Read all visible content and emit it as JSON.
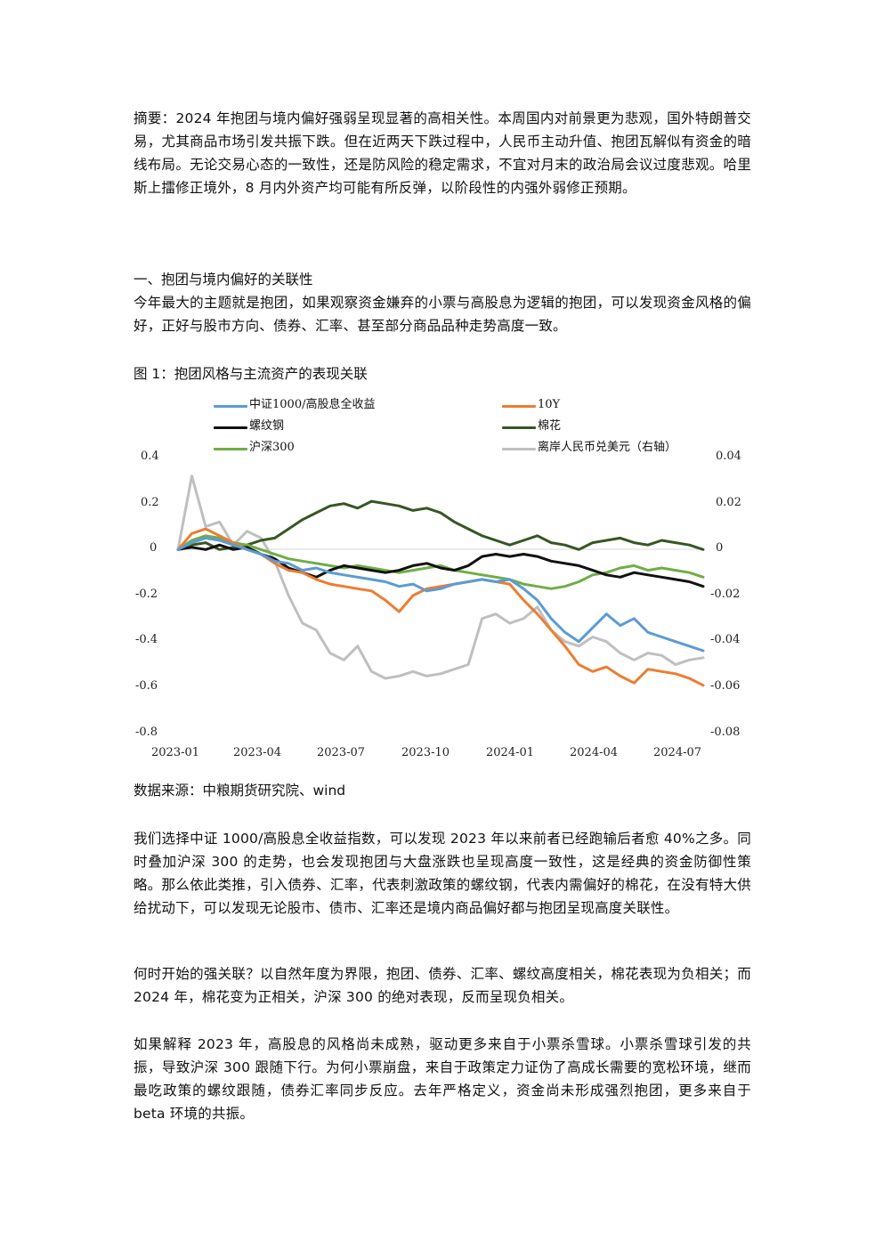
{
  "summary": "摘要：2024 年抱团与境内偏好强弱呈现显著的高相关性。本周国内对前景更为悲观，国外特朗普交易，尤其商品市场引发共振下跌。但在近两天下跌过程中，人民币主动升值、抱团瓦解似有资金的暗线布局。无论交易心态的一致性，还是防风险的稳定需求，不宜对月末的政治局会议过度悲观。哈里斯上擂修正境外，8 月内外资产均可能有所反弹，以阶段性的内强外弱修正预期。",
  "section1": {
    "heading": "一、抱团与境内偏好的关联性",
    "intro": "今年最大的主题就是抱团，如果观察资金嫌弃的小票与高股息为逻辑的抱团，可以发现资金风格的偏好，正好与股市方向、债券、汇率、甚至部分商品品种走势高度一致。"
  },
  "figure": {
    "caption": "图 1：抱团风格与主流资产的表现关联",
    "source": "数据来源：中粮期货研究院、wind"
  },
  "paragraphs": [
    "我们选择中证 1000/高股息全收益指数，可以发现 2023 年以来前者已经跑输后者愈 40%之多。同时叠加沪深 300 的走势，也会发现抱团与大盘涨跌也呈现高度一致性，这是经典的资金防御性策略。那么依此类推，引入债券、汇率，代表刺激政策的螺纹钢，代表内需偏好的棉花，在没有特大供给扰动下，可以发现无论股市、债市、汇率还是境内商品偏好都与抱团呈现高度关联性。",
    "何时开始的强关联？以自然年度为界限，抱团、债券、汇率、螺纹高度相关，棉花表现为负相关；而 2024 年，棉花变为正相关，沪深 300 的绝对表现，反而呈现负相关。",
    "如果解释 2023 年，高股息的风格尚未成熟，驱动更多来自于小票杀雪球。小票杀雪球引发的共振，导致沪深 300 跟随下行。为何小票崩盘，来自于政策定力证伪了高成长需要的宽松环境，继而最吃政策的螺纹跟随，债券汇率同步反应。去年严格定义，资金尚未形成强烈抱团，更多来自于 beta 环境的共振。"
  ],
  "chart_data": {
    "type": "line",
    "title": "",
    "xlabel": "",
    "ylabel": "",
    "x_ticks": [
      "2023-01",
      "2023-04",
      "2023-07",
      "2023-10",
      "2024-01",
      "2024-04",
      "2024-07"
    ],
    "y_left_ticks": [
      "0.4",
      "0.2",
      "0",
      "-0.2",
      "-0.4",
      "-0.6",
      "-0.8"
    ],
    "y_right_ticks": [
      "0.04",
      "0.02",
      "0",
      "-0.02",
      "-0.04",
      "-0.06",
      "-0.08"
    ],
    "ylim_left": [
      -0.8,
      0.4
    ],
    "ylim_right": [
      -0.08,
      0.04
    ],
    "grid": false,
    "legend_position": "top",
    "x_months": [
      0,
      0.5,
      1,
      1.5,
      2,
      2.5,
      3,
      3.5,
      4,
      4.5,
      5,
      5.5,
      6,
      6.5,
      7,
      7.5,
      8,
      8.5,
      9,
      9.5,
      10,
      10.5,
      11,
      11.5,
      12,
      12.5,
      13,
      13.5,
      14,
      14.5,
      15,
      15.5,
      16,
      16.5,
      17,
      17.5,
      18,
      18.5,
      19
    ],
    "series": [
      {
        "name": "中证1000/高股息全收益",
        "color": "#5b9bd5",
        "axis": "left",
        "values": [
          0,
          0.03,
          0.05,
          0.04,
          0.02,
          0.0,
          -0.02,
          -0.05,
          -0.06,
          -0.09,
          -0.08,
          -0.1,
          -0.11,
          -0.12,
          -0.13,
          -0.14,
          -0.16,
          -0.15,
          -0.18,
          -0.17,
          -0.15,
          -0.14,
          -0.13,
          -0.14,
          -0.13,
          -0.17,
          -0.22,
          -0.3,
          -0.36,
          -0.4,
          -0.34,
          -0.28,
          -0.33,
          -0.3,
          -0.36,
          -0.38,
          -0.4,
          -0.42,
          -0.44
        ]
      },
      {
        "name": "10Y",
        "color": "#ed7d31",
        "axis": "left",
        "values": [
          0,
          0.07,
          0.09,
          0.06,
          0.03,
          0.0,
          -0.02,
          -0.06,
          -0.09,
          -0.1,
          -0.13,
          -0.15,
          -0.16,
          -0.17,
          -0.18,
          -0.22,
          -0.27,
          -0.2,
          -0.17,
          -0.16,
          -0.15,
          -0.14,
          -0.13,
          -0.14,
          -0.15,
          -0.22,
          -0.28,
          -0.35,
          -0.42,
          -0.5,
          -0.53,
          -0.51,
          -0.55,
          -0.58,
          -0.52,
          -0.53,
          -0.54,
          -0.56,
          -0.59
        ]
      },
      {
        "name": "螺纹钢",
        "color": "#111111",
        "axis": "left",
        "values": [
          0,
          0.01,
          0.0,
          0.02,
          0.0,
          0.01,
          -0.02,
          -0.04,
          -0.08,
          -0.1,
          -0.12,
          -0.09,
          -0.07,
          -0.08,
          -0.09,
          -0.1,
          -0.09,
          -0.07,
          -0.06,
          -0.08,
          -0.09,
          -0.07,
          -0.03,
          -0.02,
          -0.03,
          -0.02,
          -0.03,
          -0.05,
          -0.06,
          -0.07,
          -0.09,
          -0.11,
          -0.12,
          -0.1,
          -0.11,
          -0.12,
          -0.13,
          -0.14,
          -0.16
        ]
      },
      {
        "name": "棉花",
        "color": "#375623",
        "axis": "left",
        "values": [
          0,
          0.02,
          0.03,
          0.0,
          0.01,
          0.02,
          0.04,
          0.05,
          0.09,
          0.13,
          0.16,
          0.19,
          0.2,
          0.18,
          0.21,
          0.2,
          0.19,
          0.17,
          0.18,
          0.16,
          0.12,
          0.09,
          0.06,
          0.04,
          0.02,
          0.04,
          0.06,
          0.03,
          0.02,
          0.0,
          0.03,
          0.04,
          0.05,
          0.03,
          0.02,
          0.04,
          0.03,
          0.02,
          0.0
        ]
      },
      {
        "name": "沪深300",
        "color": "#70ad47",
        "axis": "left",
        "values": [
          0,
          0.04,
          0.06,
          0.05,
          0.03,
          0.02,
          0.0,
          -0.02,
          -0.04,
          -0.05,
          -0.06,
          -0.07,
          -0.08,
          -0.07,
          -0.08,
          -0.09,
          -0.1,
          -0.09,
          -0.08,
          -0.07,
          -0.09,
          -0.1,
          -0.11,
          -0.12,
          -0.13,
          -0.15,
          -0.16,
          -0.17,
          -0.16,
          -0.14,
          -0.11,
          -0.1,
          -0.08,
          -0.07,
          -0.09,
          -0.08,
          -0.09,
          -0.1,
          -0.12
        ]
      },
      {
        "name": "离岸人民币兑美元（右轴）",
        "color": "#bfbfbf",
        "axis": "right",
        "values": [
          0,
          0.032,
          0.01,
          0.012,
          0.002,
          0.008,
          0.005,
          -0.005,
          -0.02,
          -0.032,
          -0.035,
          -0.045,
          -0.048,
          -0.042,
          -0.053,
          -0.056,
          -0.055,
          -0.053,
          -0.055,
          -0.054,
          -0.052,
          -0.05,
          -0.03,
          -0.028,
          -0.032,
          -0.03,
          -0.025,
          -0.035,
          -0.04,
          -0.042,
          -0.038,
          -0.04,
          -0.045,
          -0.048,
          -0.045,
          -0.046,
          -0.05,
          -0.048,
          -0.047
        ]
      }
    ]
  }
}
